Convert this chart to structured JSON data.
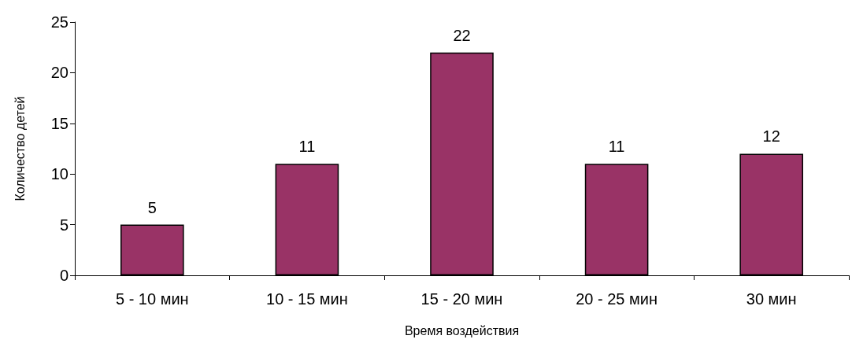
{
  "chart_data": {
    "type": "bar",
    "xlabel": "Время воздействия",
    "ylabel": "Количество детей",
    "categories": [
      "5 - 10 мин",
      "10 - 15 мин",
      "15 - 20 мин",
      "20 - 25 мин",
      "30 мин"
    ],
    "values": [
      5,
      11,
      22,
      11,
      12
    ],
    "color": "#993366",
    "ylim": [
      0,
      25
    ],
    "yticks": [
      0,
      5,
      10,
      15,
      20,
      25
    ],
    "grid": false,
    "data_labels": true
  }
}
